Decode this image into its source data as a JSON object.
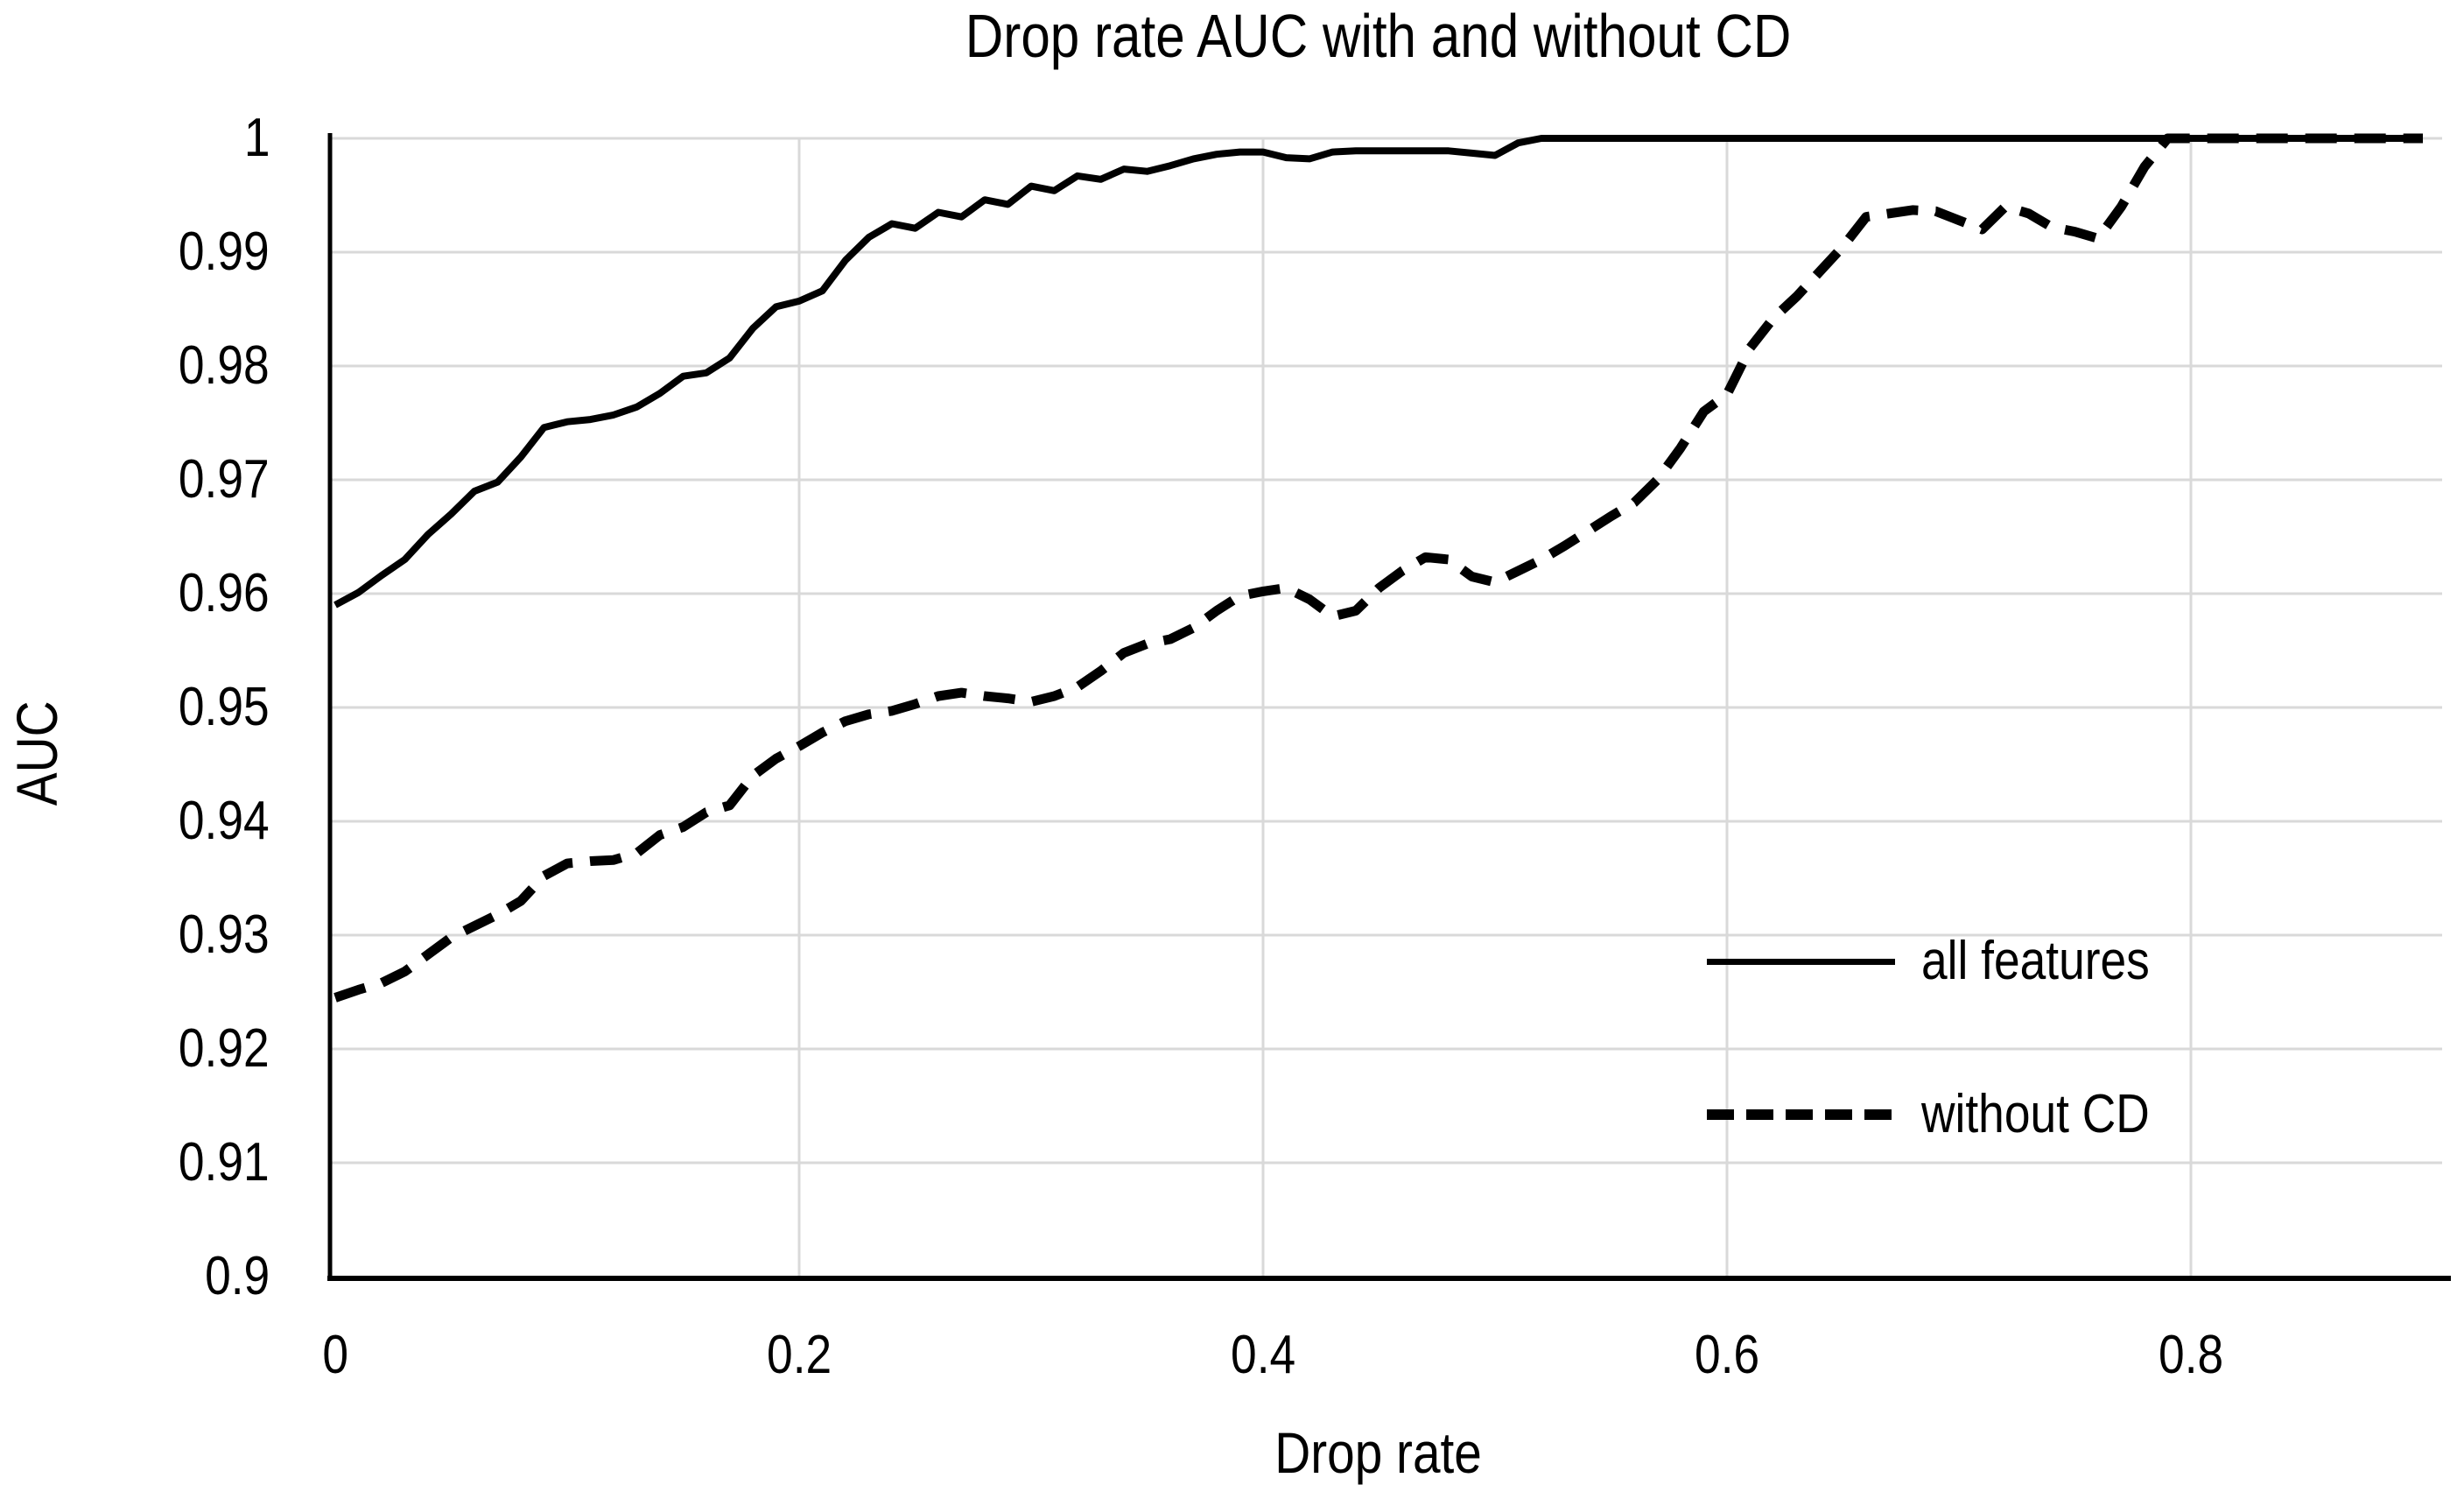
{
  "title": "Drop rate AUC with and without CD",
  "colors": {
    "background": "#ffffff",
    "gridline": "#d9d9d9",
    "axis": "#000000",
    "text": "#000000",
    "series": "#000000"
  },
  "chart_data": {
    "type": "line",
    "title": "Drop rate AUC with and without CD",
    "xlabel": "Drop rate",
    "ylabel": "AUC",
    "xlim": [
      0,
      0.9
    ],
    "ylim": [
      0.9,
      1.0
    ],
    "grid": true,
    "legend_position": "inside-right",
    "x_ticks": [
      0,
      0.2,
      0.4,
      0.6,
      0.8
    ],
    "x_tick_labels": [
      "0",
      "0.2",
      "0.4",
      "0.6",
      "0.8"
    ],
    "y_ticks": [
      1,
      0.99,
      0.98,
      0.97,
      0.96,
      0.95,
      0.94,
      0.93,
      0.92,
      0.91,
      0.9
    ],
    "y_tick_labels": [
      "1",
      "0.99",
      "0.98",
      "0.97",
      "0.96",
      "0.95",
      "0.94",
      "0.93",
      "0.92",
      "0.91",
      "0.9"
    ],
    "x_start": 0,
    "x_step": 0.01,
    "series": [
      {
        "name": "all features",
        "style": "solid",
        "color": "#000000",
        "values": [
          0.959,
          0.9601,
          0.9616,
          0.963,
          0.9652,
          0.967,
          0.969,
          0.9698,
          0.972,
          0.9746,
          0.9751,
          0.9753,
          0.9757,
          0.9764,
          0.9776,
          0.9791,
          0.9794,
          0.9807,
          0.9833,
          0.9852,
          0.9857,
          0.9866,
          0.9893,
          0.9913,
          0.9925,
          0.9921,
          0.9935,
          0.9931,
          0.9946,
          0.9942,
          0.9958,
          0.9954,
          0.9967,
          0.9964,
          0.9973,
          0.9971,
          0.9976,
          0.9982,
          0.9986,
          0.9988,
          0.9988,
          0.9983,
          0.9982,
          0.9988,
          0.9989,
          0.9989,
          0.9989,
          0.9989,
          0.9989,
          0.9987,
          0.9985,
          0.9996,
          1,
          1,
          1,
          1,
          1,
          1,
          1,
          1,
          1,
          1,
          1,
          1,
          1,
          1,
          1,
          1,
          1,
          1,
          1,
          1,
          1,
          1,
          1,
          1,
          1,
          1,
          1,
          1,
          1,
          1,
          1,
          1,
          1,
          1,
          1,
          1,
          1,
          1,
          1
        ]
      },
      {
        "name": "without CD",
        "style": "dashed",
        "color": "#000000",
        "values": [
          0.9245,
          0.9252,
          0.9258,
          0.9268,
          0.9283,
          0.9298,
          0.9308,
          0.9318,
          0.933,
          0.9352,
          0.9363,
          0.9365,
          0.9366,
          0.9372,
          0.9388,
          0.9395,
          0.9408,
          0.9414,
          0.944,
          0.9455,
          0.9466,
          0.9478,
          0.9488,
          0.9494,
          0.9497,
          0.9503,
          0.951,
          0.9513,
          0.951,
          0.9508,
          0.9505,
          0.951,
          0.9518,
          0.9532,
          0.9548,
          0.9556,
          0.956,
          0.957,
          0.9585,
          0.9598,
          0.9602,
          0.9605,
          0.9595,
          0.958,
          0.9585,
          0.9605,
          0.962,
          0.9632,
          0.963,
          0.9615,
          0.961,
          0.962,
          0.963,
          0.9642,
          0.9655,
          0.9668,
          0.968,
          0.97,
          0.9728,
          0.976,
          0.9775,
          0.9816,
          0.9842,
          0.9861,
          0.9883,
          0.9905,
          0.9931,
          0.9934,
          0.9937,
          0.9936,
          0.9928,
          0.992,
          0.994,
          0.9934,
          0.9922,
          0.9918,
          0.9912,
          0.994,
          0.9975,
          1,
          1,
          1,
          1,
          1,
          1,
          1,
          1,
          1,
          1,
          1,
          1
        ]
      }
    ]
  }
}
